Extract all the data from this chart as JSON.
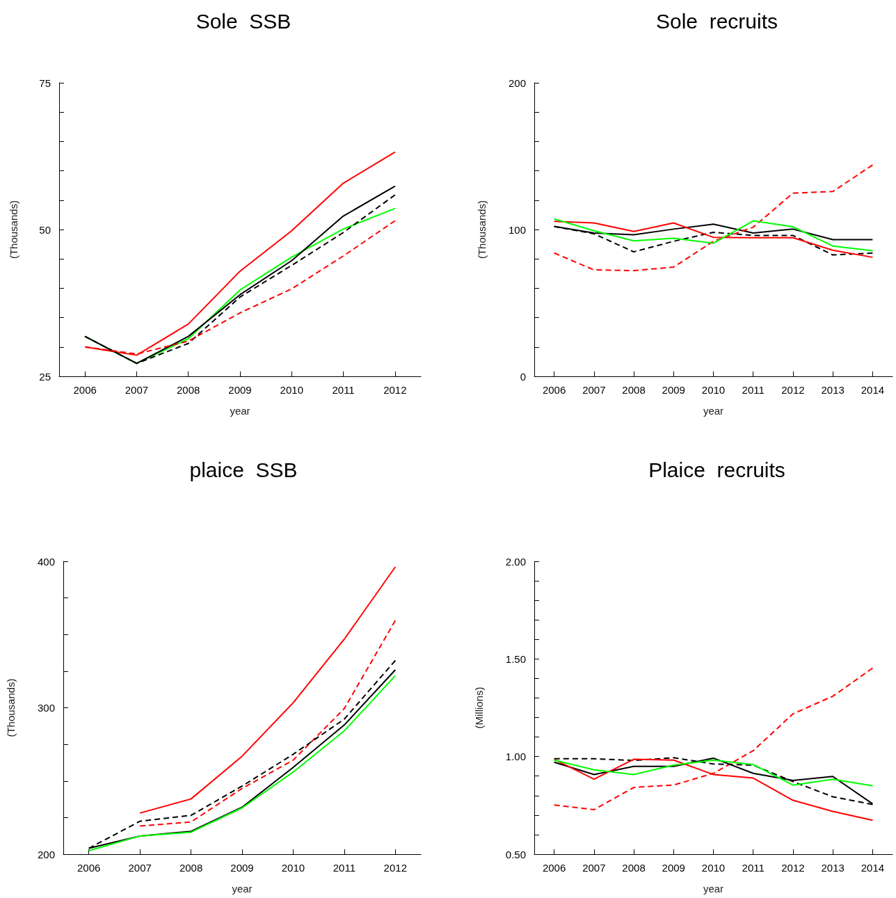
{
  "chart_data": [
    {
      "type": "line",
      "title": "Sole  SSB",
      "xlabel": "year",
      "ylabel": "(Thousands)",
      "xlim": [
        2005.5,
        2012.5
      ],
      "xticks": [
        2006,
        2007,
        2008,
        2009,
        2010,
        2011,
        2012
      ],
      "x": [
        2006,
        2007,
        2008,
        2009,
        2010,
        2011,
        2012
      ],
      "ylim": [
        25,
        75
      ],
      "yticks": [
        25,
        {
          "value": 30,
          "label": null
        },
        {
          "value": 35,
          "label": null
        },
        {
          "value": 40,
          "label": null
        },
        {
          "value": 45,
          "label": null
        },
        50,
        {
          "value": 55,
          "label": null
        },
        {
          "value": 60,
          "label": null
        },
        {
          "value": 65,
          "label": null
        },
        {
          "value": 70,
          "label": null
        },
        75
      ],
      "grid": false,
      "marker": "none",
      "series": [
        {
          "color": "#00ff00",
          "line_style": "solid",
          "values": [
            31.8,
            27.2,
            31.4,
            39.7,
            45.3,
            50.1,
            53.6
          ]
        },
        {
          "color": "#ff0000",
          "line_style": "solid",
          "values": [
            30.0,
            28.6,
            33.9,
            42.9,
            49.8,
            57.9,
            63.2
          ]
        },
        {
          "color": "#000000",
          "line_style": "solid",
          "values": [
            31.8,
            27.2,
            31.8,
            38.9,
            44.7,
            52.3,
            57.4
          ]
        },
        {
          "color": "#000000",
          "line_style": "dashed",
          "values": [
            31.8,
            27.2,
            30.6,
            38.5,
            43.9,
            49.5,
            55.9
          ]
        },
        {
          "color": "#ff0000",
          "line_style": "dashed",
          "values": [
            30.0,
            28.8,
            31.0,
            35.8,
            39.9,
            45.5,
            51.5
          ]
        }
      ]
    },
    {
      "type": "line",
      "title": "Sole  recruits",
      "xlabel": "year",
      "ylabel": "(Thousands)",
      "xlim": [
        2005.5,
        2014.5
      ],
      "xticks": [
        2006,
        2007,
        2008,
        2009,
        2010,
        2011,
        2012,
        2013,
        2014
      ],
      "x": [
        2006,
        2007,
        2008,
        2009,
        2010,
        2011,
        2012,
        2013,
        2014
      ],
      "ylim": [
        0,
        200
      ],
      "yticks": [
        0,
        {
          "value": 20,
          "label": null
        },
        {
          "value": 40,
          "label": null
        },
        {
          "value": 60,
          "label": null
        },
        {
          "value": 80,
          "label": null
        },
        100,
        {
          "value": 120,
          "label": null
        },
        {
          "value": 140,
          "label": null
        },
        {
          "value": 160,
          "label": null
        },
        {
          "value": 180,
          "label": null
        },
        200
      ],
      "grid": false,
      "marker": "none",
      "series": [
        {
          "color": "#000000",
          "line_style": "solid",
          "values": [
            102.1,
            97.6,
            96.5,
            100.3,
            103.7,
            97.6,
            100.3,
            93.1,
            93.1
          ]
        },
        {
          "color": "#000000",
          "line_style": "dashed",
          "values": [
            102.1,
            97.1,
            84.8,
            92.0,
            98.1,
            96.0,
            96.0,
            82.7,
            84.0
          ]
        },
        {
          "color": "#ff0000",
          "line_style": "dashed",
          "values": [
            84.0,
            72.5,
            72.0,
            74.4,
            92.0,
            101.6,
            124.8,
            125.9,
            144.0
          ]
        },
        {
          "color": "#ff0000",
          "line_style": "solid",
          "values": [
            105.6,
            104.5,
            98.7,
            104.5,
            94.7,
            94.4,
            94.4,
            85.9,
            81.1
          ]
        },
        {
          "color": "#00ff00",
          "line_style": "solid",
          "values": [
            107.2,
            99.2,
            92.3,
            94.1,
            90.7,
            105.9,
            101.9,
            88.8,
            85.6
          ]
        }
      ]
    },
    {
      "type": "line",
      "title": "plaice  SSB",
      "xlabel": "year",
      "ylabel": "(Thousands)",
      "xlim": [
        2005.5,
        2012.5
      ],
      "xticks": [
        2006,
        2007,
        2008,
        2009,
        2010,
        2011,
        2012
      ],
      "x": [
        2006,
        2007,
        2008,
        2009,
        2010,
        2011,
        2012
      ],
      "ylim": [
        200,
        400
      ],
      "yticks": [
        200,
        {
          "value": 225,
          "label": null
        },
        {
          "value": 250,
          "label": null
        },
        {
          "value": 275,
          "label": null
        },
        300,
        {
          "value": 325,
          "label": null
        },
        {
          "value": 350,
          "label": null
        },
        {
          "value": 375,
          "label": null
        },
        400
      ],
      "grid": false,
      "marker": "none",
      "series": [
        {
          "color": "#ff0000",
          "line_style": "solid",
          "values": [
            null,
            228.1,
            237.7,
            266.9,
            303.4,
            346.8,
            396.2
          ]
        },
        {
          "color": "#ff0000",
          "line_style": "dashed",
          "values": [
            null,
            219.2,
            222.0,
            244.9,
            264.2,
            299.4,
            359.6
          ]
        },
        {
          "color": "#000000",
          "line_style": "dashed",
          "values": [
            204.0,
            222.5,
            226.5,
            246.5,
            268.2,
            292.2,
            332.3
          ]
        },
        {
          "color": "#000000",
          "line_style": "solid",
          "values": [
            204.0,
            212.4,
            215.6,
            232.1,
            259.3,
            288.2,
            325.9
          ]
        },
        {
          "color": "#00ff00",
          "line_style": "solid",
          "values": [
            202.4,
            212.4,
            215.0,
            231.6,
            256.1,
            284.2,
            321.9
          ]
        }
      ]
    },
    {
      "type": "line",
      "title": "Plaice  recruits",
      "xlabel": "year",
      "ylabel": "(Millions)",
      "xlim": [
        2005.5,
        2014.5
      ],
      "xticks": [
        2006,
        2007,
        2008,
        2009,
        2010,
        2011,
        2012,
        2013,
        2014
      ],
      "x": [
        2006,
        2007,
        2008,
        2009,
        2010,
        2011,
        2012,
        2013,
        2014
      ],
      "ylim": [
        0.5,
        2.0
      ],
      "yticks": [
        {
          "value": 0.5,
          "label": "0.50"
        },
        {
          "value": 0.6,
          "label": null
        },
        {
          "value": 0.7,
          "label": null
        },
        {
          "value": 0.8,
          "label": null
        },
        {
          "value": 0.9,
          "label": null
        },
        {
          "value": 1.0,
          "label": "1.00"
        },
        {
          "value": 1.1,
          "label": null
        },
        {
          "value": 1.2,
          "label": null
        },
        {
          "value": 1.3,
          "label": null
        },
        {
          "value": 1.4,
          "label": null
        },
        {
          "value": 1.5,
          "label": "1.50"
        },
        {
          "value": 1.6,
          "label": null
        },
        {
          "value": 1.7,
          "label": null
        },
        {
          "value": 1.8,
          "label": null
        },
        {
          "value": 1.9,
          "label": null
        },
        {
          "value": 2.0,
          "label": "2.00"
        }
      ],
      "grid": false,
      "marker": "none",
      "series": [
        {
          "color": "#000000",
          "line_style": "dashed",
          "values": [
            0.989,
            0.989,
            0.98,
            0.994,
            0.962,
            0.956,
            0.872,
            0.794,
            0.755
          ]
        },
        {
          "color": "#ff0000",
          "line_style": "dashed",
          "values": [
            0.752,
            0.728,
            0.842,
            0.854,
            0.914,
            1.03,
            1.219,
            1.309,
            1.453
          ]
        },
        {
          "color": "#000000",
          "line_style": "solid",
          "values": [
            0.971,
            0.908,
            0.95,
            0.95,
            0.992,
            0.914,
            0.878,
            0.898,
            0.758
          ]
        },
        {
          "color": "#ff0000",
          "line_style": "solid",
          "values": [
            0.986,
            0.884,
            0.986,
            0.982,
            0.908,
            0.89,
            0.776,
            0.719,
            0.674
          ]
        },
        {
          "color": "#00ff00",
          "line_style": "solid",
          "values": [
            0.982,
            0.932,
            0.908,
            0.956,
            0.982,
            0.959,
            0.854,
            0.884,
            0.85
          ]
        }
      ]
    }
  ]
}
